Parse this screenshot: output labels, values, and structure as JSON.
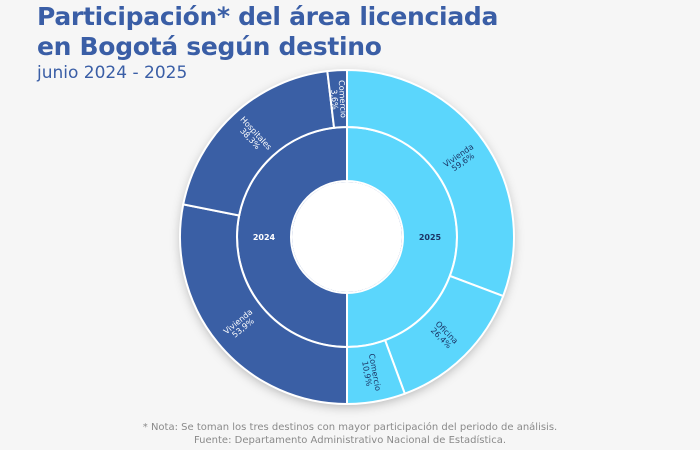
{
  "chart_data": {
    "type": "sunburst",
    "title_line1": "Participación* del área licenciada",
    "title_line2": "en Bogotá según destino",
    "subtitle": "junio 2024 - 2025",
    "colors": {
      "2024": "#3a5fa5",
      "2025": "#5bd6fc",
      "label_dark": "#1b3566",
      "label_light": "#ffffff",
      "title": "#3a5ea6"
    },
    "groups": [
      {
        "name": "2025",
        "children": [
          {
            "name": "Vivienda",
            "value": 59.6,
            "label": "59,6%"
          },
          {
            "name": "Oficina",
            "value": 26.4,
            "label": "26,4%"
          },
          {
            "name": "Comercio",
            "value": 10.9,
            "label": "10,9%"
          }
        ]
      },
      {
        "name": "2024",
        "children": [
          {
            "name": "Vivienda",
            "value": 53.9,
            "label": "53,9%"
          },
          {
            "name": "Hospitales",
            "value": 38.3,
            "label": "38,3%"
          },
          {
            "name": "Comercio",
            "value": 3.6,
            "label": "3,6%"
          }
        ]
      }
    ]
  },
  "footer": {
    "note": "* Nota: Se toman los tres destinos con mayor participación del periodo de análisis.",
    "source": "Fuente: Departamento Administrativo Nacional de Estadística."
  }
}
